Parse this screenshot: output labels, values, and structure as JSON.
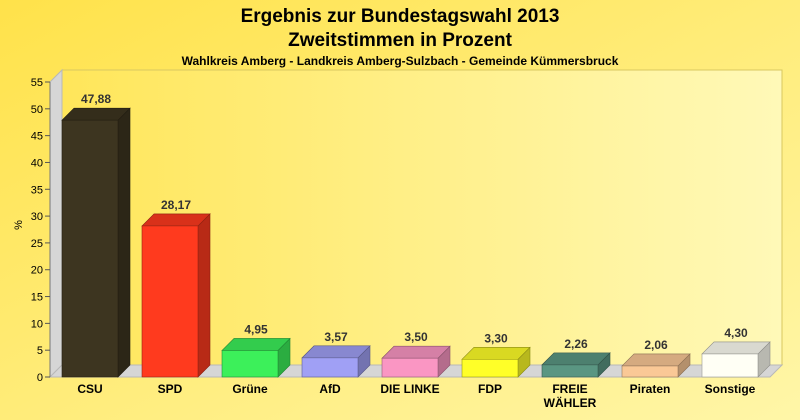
{
  "chart_data": {
    "type": "bar",
    "title": "Ergebnis zur Bundestagswahl 2013",
    "title_line2": "Zweitstimmen in Prozent",
    "subtitle": "Wahlkreis Amberg - Landkreis Amberg-Sulzbach - Gemeinde Kümmersbruck",
    "ylabel": "%",
    "xlabel": "",
    "ylim": [
      0,
      55
    ],
    "yticks": [
      0,
      5,
      10,
      15,
      20,
      25,
      30,
      35,
      40,
      45,
      50,
      55
    ],
    "grid": false,
    "categories": [
      "CSU",
      "SPD",
      "Grüne",
      "AfD",
      "DIE LINKE",
      "FDP",
      "FREIE WÄHLER",
      "Piraten",
      "Sonstige"
    ],
    "category_lines": [
      [
        "CSU"
      ],
      [
        "SPD"
      ],
      [
        "Grüne"
      ],
      [
        "AfD"
      ],
      [
        "DIE LINKE"
      ],
      [
        "FDP"
      ],
      [
        "FREIE",
        "WÄHLER"
      ],
      [
        "Piraten"
      ],
      [
        "Sonstige"
      ]
    ],
    "values": [
      47.88,
      28.17,
      4.95,
      3.57,
      3.5,
      3.3,
      2.26,
      2.06,
      4.3
    ],
    "value_labels": [
      "47,88",
      "28,17",
      "4,95",
      "3,57",
      "3,50",
      "3,30",
      "2,26",
      "2,06",
      "4,30"
    ],
    "colors": [
      "#3d3520",
      "#ff3a1e",
      "#3cf05a",
      "#a0a0f5",
      "#fa96c3",
      "#ffff28",
      "#5a9682",
      "#fac896",
      "#fffff5"
    ]
  }
}
